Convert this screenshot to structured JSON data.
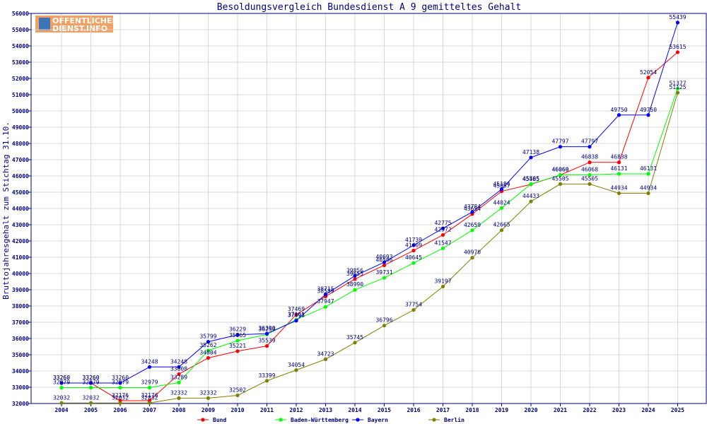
{
  "logo": {
    "line1": "OFFENTLICHER",
    "line2": "DIENST.INFO"
  },
  "colors": {
    "axis": "#000080",
    "grid": "#d8d8d8",
    "bg": "#ffffff"
  },
  "chart_data": {
    "type": "line",
    "title": "Besoldungsvergleich Bundesdienst A 9 gemitteltes Gehalt",
    "ylabel": "Bruttojahresgehalt zum Stichtag 31.10.",
    "xlabel": "",
    "ylim": [
      32000,
      56000
    ],
    "yticks": [
      32000,
      33000,
      34000,
      35000,
      36000,
      37000,
      38000,
      39000,
      40000,
      41000,
      42000,
      43000,
      44000,
      45000,
      46000,
      47000,
      48000,
      49000,
      50000,
      51000,
      52000,
      53000,
      54000,
      55000,
      56000
    ],
    "grid": true,
    "legend_position": "bottom",
    "categories": [
      "2004",
      "2005",
      "2006",
      "2007",
      "2008",
      "2009",
      "2010",
      "2011",
      "2012",
      "2013",
      "2014",
      "2015",
      "2016",
      "2017",
      "2018",
      "2019",
      "2020",
      "2021",
      "2022",
      "2023",
      "2024",
      "2025"
    ],
    "series": [
      {
        "name": "Bund",
        "color": "#ff0000",
        "values": [
          33260,
          33260,
          32176,
          32176,
          33808,
          34804,
          35221,
          35539,
          37469,
          38589,
          39655,
          40506,
          41409,
          42372,
          43654,
          45057,
          45485,
          46060,
          46838,
          46838,
          52054,
          53615
        ]
      },
      {
        "name": "Baden-Württemberg",
        "color": "#00ff00",
        "values": [
          32979,
          32979,
          32979,
          32979,
          33289,
          35262,
          35865,
          36250,
          37161,
          37947,
          38990,
          39731,
          40645,
          41547,
          42659,
          44024,
          45505,
          46060,
          46068,
          46131,
          46131,
          51377
        ]
      },
      {
        "name": "Bayern",
        "color": "#0000ff",
        "values": [
          33260,
          33260,
          33260,
          34248,
          34248,
          35799,
          36229,
          36300,
          37098,
          38715,
          39856,
          40693,
          41739,
          42775,
          43784,
          45184,
          47138,
          47797,
          47797,
          49750,
          49750,
          55439
        ]
      },
      {
        "name": "Berlin",
        "color": "#808000",
        "values": [
          32032,
          32032,
          32032,
          32032,
          32332,
          32332,
          32502,
          33399,
          34054,
          34723,
          35745,
          36796,
          37754,
          39197,
          40970,
          42665,
          44433,
          45505,
          45505,
          44934,
          44934,
          51125
        ]
      }
    ]
  }
}
